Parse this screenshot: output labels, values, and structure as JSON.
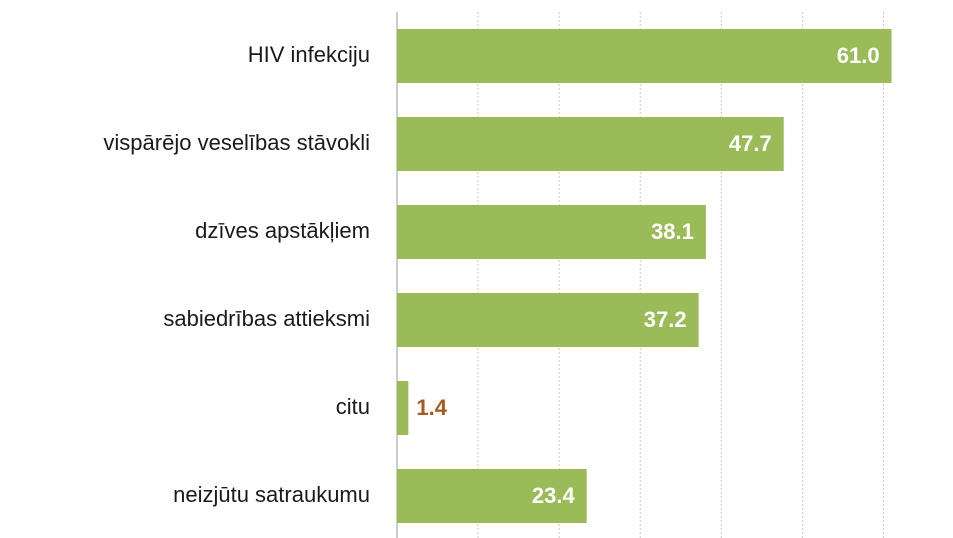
{
  "chart_data": {
    "type": "barh",
    "categories": [
      "HIV infekciju",
      "vispārējo veselības stāvokli",
      "dzīves apstākļiem",
      "sabiedrības attieksmi",
      "citu",
      "neizjūtu satraukumu"
    ],
    "values": [
      61.0,
      47.7,
      38.1,
      37.2,
      1.4,
      23.4
    ],
    "value_labels": [
      "61.0",
      "47.7",
      "38.1",
      "37.2",
      "1.4",
      "23.4"
    ],
    "color": "#9bbb59",
    "label_color": "#ffffff",
    "outside_label_color": "#a65a1e",
    "xlim": [
      0,
      65
    ],
    "xticks": [
      0,
      10,
      20,
      30,
      40,
      50,
      60
    ],
    "grid": true
  }
}
